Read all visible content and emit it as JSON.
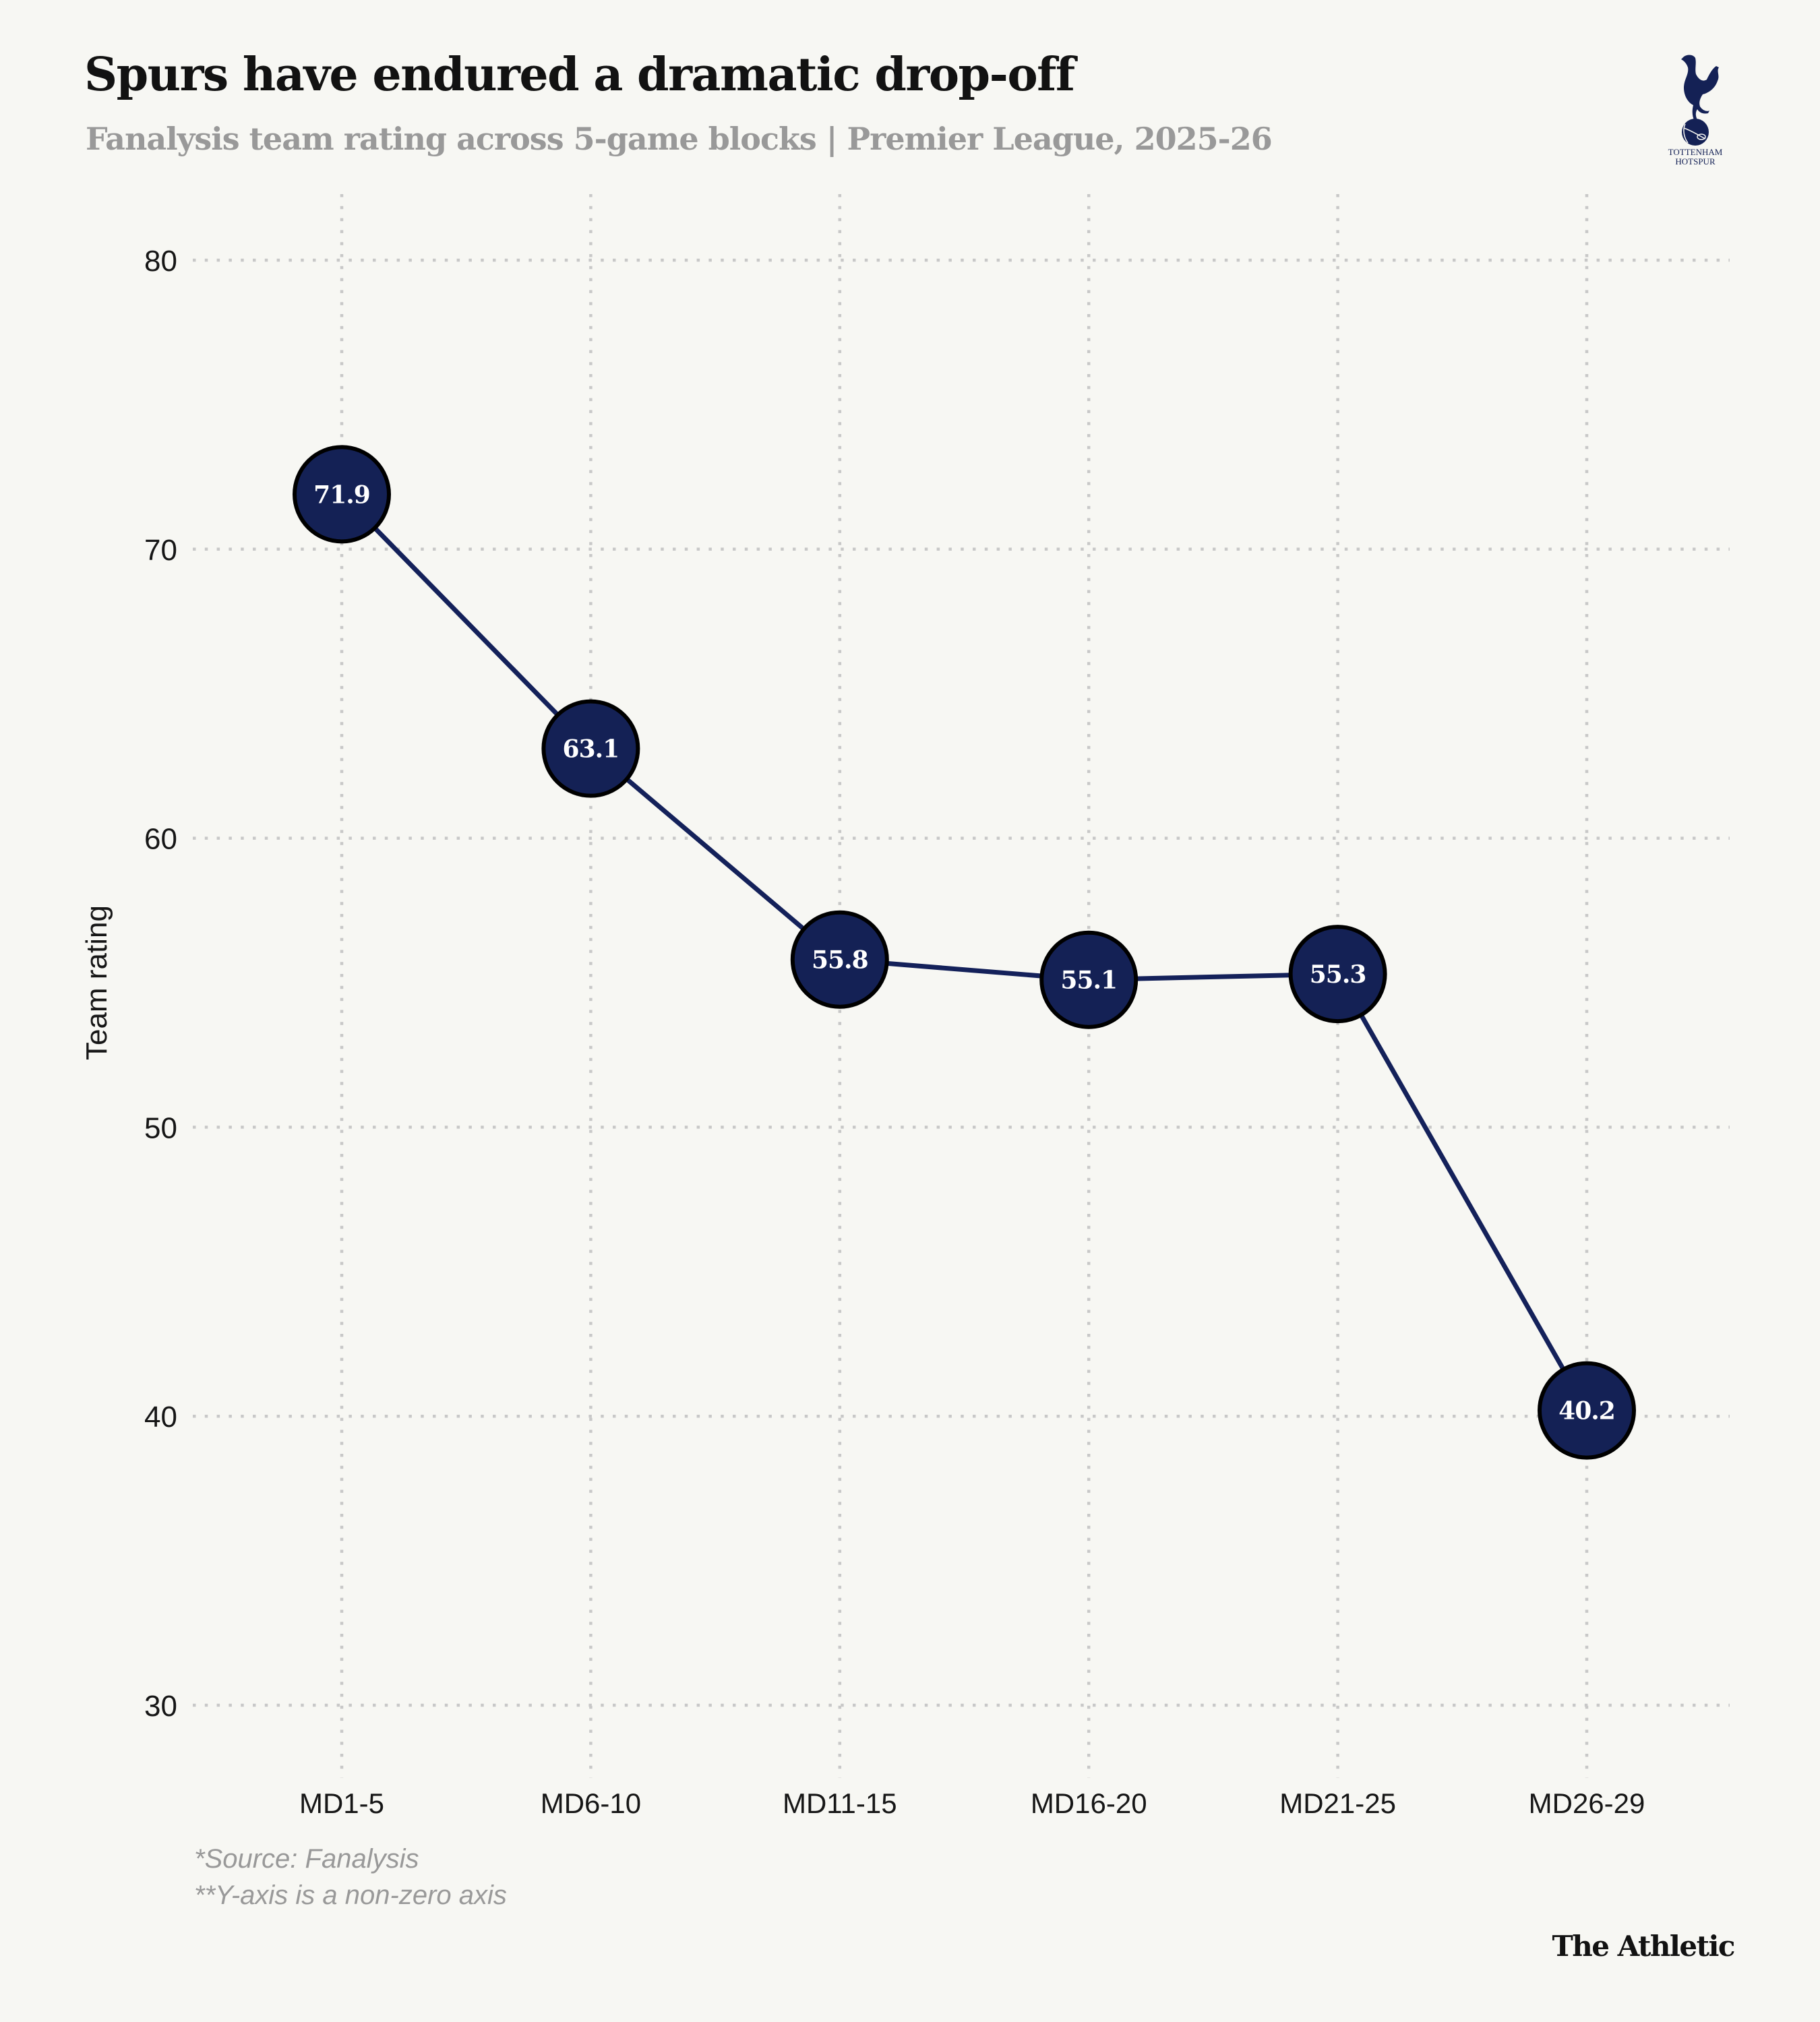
{
  "header": {
    "title": "Spurs have endured a dramatic drop-off",
    "subtitle": "Fanalysis team rating across 5-game blocks | Premier League, 2025-26"
  },
  "logo": {
    "icon": "tottenham-hotspur-crest-icon",
    "line1": "TOTTENHAM",
    "line2": "HOTSPUR"
  },
  "footer": {
    "note1": "*Source: Fanalysis",
    "note2": "**Y-axis is a non-zero axis",
    "brand": "The Athletic"
  },
  "colors": {
    "background": "#f7f7f3",
    "line": "#14215a",
    "marker_fill": "#142155",
    "marker_stroke": "#000000",
    "grid": "#c8c8c8",
    "text": "#161616",
    "muted": "#999999"
  },
  "chart_data": {
    "type": "line",
    "title": "Spurs have endured a dramatic drop-off",
    "subtitle": "Fanalysis team rating across 5-game blocks | Premier League, 2025-26",
    "xlabel": "",
    "ylabel": "Team rating",
    "categories": [
      "MD1-5",
      "MD6-10",
      "MD11-15",
      "MD16-20",
      "MD21-25",
      "MD26-29"
    ],
    "series": [
      {
        "name": "Tottenham Hotspur",
        "values": [
          71.9,
          63.1,
          55.8,
          55.1,
          55.3,
          40.2
        ]
      }
    ],
    "data_labels": [
      "71.9",
      "63.1",
      "55.8",
      "55.1",
      "55.3",
      "40.2"
    ],
    "yticks": [
      30,
      40,
      50,
      60,
      70,
      80
    ],
    "ylim": [
      27.7,
      82.3
    ],
    "grid": true,
    "legend": "none"
  }
}
